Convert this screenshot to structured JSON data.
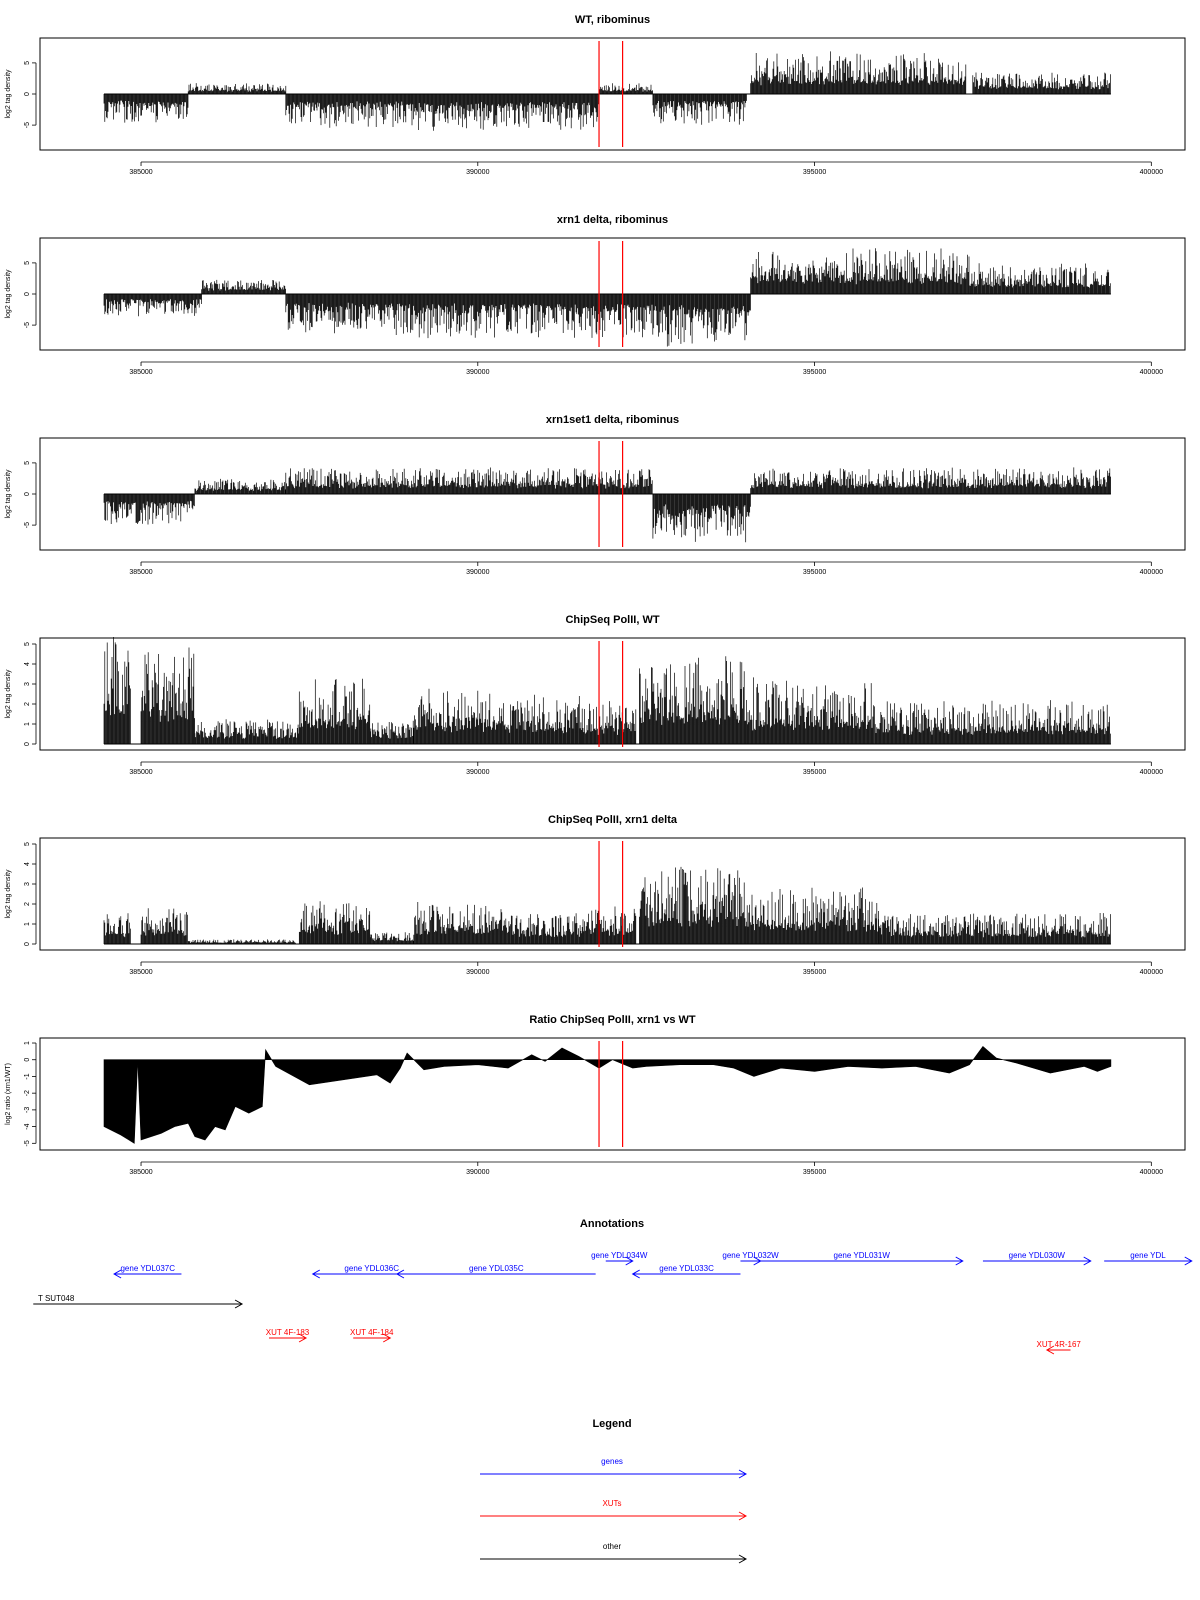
{
  "chart_data": [
    {
      "type": "bar",
      "title": "WT, ribominus",
      "xlabel": "",
      "ylabel": "log2 tag density",
      "xlim": [
        383500,
        400500
      ],
      "ylim": [
        -9,
        9
      ],
      "xticks": [
        385000,
        390000,
        395000,
        400000
      ],
      "xtick_labels": [
        "385000",
        "390000",
        "395000",
        "400000"
      ],
      "yticks": [
        -5,
        0,
        5
      ],
      "ytick_labels": [
        "-5",
        "0",
        "5"
      ],
      "grid": false,
      "reference_lines_x": [
        391800,
        392150
      ],
      "regions": [
        {
          "start": 384450,
          "end": 385700,
          "height": -4.0
        },
        {
          "start": 385700,
          "end": 387150,
          "height": 1.5
        },
        {
          "start": 387150,
          "end": 389000,
          "height": -4.5
        },
        {
          "start": 389000,
          "end": 391800,
          "height": -5.0
        },
        {
          "start": 391800,
          "end": 392600,
          "height": 1.5
        },
        {
          "start": 392600,
          "end": 394000,
          "height": -4.0
        },
        {
          "start": 394050,
          "end": 397250,
          "height": 5.5
        },
        {
          "start": 397350,
          "end": 399400,
          "height": 3.0
        }
      ]
    },
    {
      "type": "bar",
      "title": "xrn1 delta, ribominus",
      "xlabel": "",
      "ylabel": "log2 tag density",
      "xlim": [
        383500,
        400500
      ],
      "ylim": [
        -9,
        9
      ],
      "xticks": [
        385000,
        390000,
        395000,
        400000
      ],
      "xtick_labels": [
        "385000",
        "390000",
        "395000",
        "400000"
      ],
      "yticks": [
        -5,
        0,
        5
      ],
      "ytick_labels": [
        "-5",
        "0",
        "5"
      ],
      "grid": false,
      "reference_lines_x": [
        391800,
        392150
      ],
      "regions": [
        {
          "start": 384450,
          "end": 385900,
          "height": -3.0
        },
        {
          "start": 385900,
          "end": 387150,
          "height": 2.0
        },
        {
          "start": 387150,
          "end": 389000,
          "height": -5.5
        },
        {
          "start": 389000,
          "end": 392600,
          "height": -6.0
        },
        {
          "start": 392600,
          "end": 394050,
          "height": -7.0
        },
        {
          "start": 394050,
          "end": 397300,
          "height": 6.0
        },
        {
          "start": 397300,
          "end": 399400,
          "height": 4.0
        }
      ]
    },
    {
      "type": "bar",
      "title": "xrn1set1 delta, ribominus",
      "xlabel": "",
      "ylabel": "log2 tag density",
      "xlim": [
        383500,
        400500
      ],
      "ylim": [
        -9,
        9
      ],
      "xticks": [
        385000,
        390000,
        395000,
        400000
      ],
      "xtick_labels": [
        "385000",
        "390000",
        "395000",
        "400000"
      ],
      "yticks": [
        -5,
        0,
        5
      ],
      "ytick_labels": [
        "-5",
        "0",
        "5"
      ],
      "grid": false,
      "reference_lines_x": [
        391800,
        392150
      ],
      "regions": [
        {
          "start": 384450,
          "end": 385800,
          "height": -4.0
        },
        {
          "start": 385800,
          "end": 387150,
          "height": 2.0
        },
        {
          "start": 387150,
          "end": 392600,
          "height": 3.5
        },
        {
          "start": 392600,
          "end": 394050,
          "height": -6.5
        },
        {
          "start": 394050,
          "end": 399400,
          "height": 3.5
        }
      ]
    },
    {
      "type": "bar",
      "title": "ChipSeq PolII, WT",
      "xlabel": "",
      "ylabel": "log2 tag density",
      "xlim": [
        383500,
        400500
      ],
      "ylim": [
        -0.3,
        5.3
      ],
      "xticks": [
        385000,
        390000,
        395000,
        400000
      ],
      "xtick_labels": [
        "385000",
        "390000",
        "395000",
        "400000"
      ],
      "yticks": [
        0,
        1,
        2,
        3,
        4,
        5
      ],
      "ytick_labels": [
        "0",
        "1",
        "2",
        "3",
        "4",
        "5"
      ],
      "grid": false,
      "reference_lines_x": [
        391800,
        392150
      ],
      "regions": [
        {
          "start": 384450,
          "end": 384850,
          "height": 4.6
        },
        {
          "start": 385000,
          "end": 385800,
          "height": 4.2
        },
        {
          "start": 385800,
          "end": 387350,
          "height": 1.0
        },
        {
          "start": 387350,
          "end": 388400,
          "height": 2.8
        },
        {
          "start": 388400,
          "end": 389050,
          "height": 1.0
        },
        {
          "start": 389050,
          "end": 390450,
          "height": 2.3
        },
        {
          "start": 390450,
          "end": 391550,
          "height": 2.0
        },
        {
          "start": 391550,
          "end": 392350,
          "height": 1.8
        },
        {
          "start": 392400,
          "end": 394000,
          "height": 3.6
        },
        {
          "start": 394000,
          "end": 395900,
          "height": 2.7
        },
        {
          "start": 395900,
          "end": 399400,
          "height": 1.8
        }
      ]
    },
    {
      "type": "bar",
      "title": "ChipSeq PolII, xrn1 delta",
      "xlabel": "",
      "ylabel": "log2 tag density",
      "xlim": [
        383500,
        400500
      ],
      "ylim": [
        -0.3,
        5.3
      ],
      "xticks": [
        385000,
        390000,
        395000,
        400000
      ],
      "xtick_labels": [
        "385000",
        "390000",
        "395000",
        "400000"
      ],
      "yticks": [
        0,
        1,
        2,
        3,
        4,
        5
      ],
      "ytick_labels": [
        "0",
        "1",
        "2",
        "3",
        "4",
        "5"
      ],
      "grid": false,
      "reference_lines_x": [
        391800,
        392150
      ],
      "regions": [
        {
          "start": 384450,
          "end": 384850,
          "height": 1.3
        },
        {
          "start": 385000,
          "end": 385700,
          "height": 1.5
        },
        {
          "start": 385700,
          "end": 387300,
          "height": 0.2
        },
        {
          "start": 387350,
          "end": 388400,
          "height": 1.8
        },
        {
          "start": 388400,
          "end": 389050,
          "height": 0.5
        },
        {
          "start": 389050,
          "end": 390450,
          "height": 1.8
        },
        {
          "start": 390450,
          "end": 391550,
          "height": 1.3
        },
        {
          "start": 391550,
          "end": 392350,
          "height": 1.6
        },
        {
          "start": 392400,
          "end": 394000,
          "height": 3.3
        },
        {
          "start": 394000,
          "end": 395950,
          "height": 2.4
        },
        {
          "start": 395950,
          "end": 399400,
          "height": 1.3
        }
      ]
    },
    {
      "type": "area",
      "title": "Ratio ChipSeq PolII, xrn1 vs WT",
      "xlabel": "",
      "ylabel": "log2 ratio (xrn1/WT)",
      "xlim": [
        383500,
        400500
      ],
      "ylim": [
        -5.4,
        1.3
      ],
      "xticks": [
        385000,
        390000,
        395000,
        400000
      ],
      "xtick_labels": [
        "385000",
        "390000",
        "395000",
        "400000"
      ],
      "yticks": [
        -5,
        -4,
        -3,
        -2,
        -1,
        0,
        1
      ],
      "ytick_labels": [
        "-5",
        "-4",
        "-3",
        "-2",
        "-1",
        "0",
        "1"
      ],
      "grid": false,
      "reference_lines_x": [
        391800,
        392150
      ],
      "x": [
        384450,
        384700,
        384900,
        384950,
        385000,
        385300,
        385500,
        385700,
        385800,
        385950,
        386100,
        386250,
        386400,
        386600,
        386800,
        386850,
        387000,
        387500,
        388000,
        388500,
        388700,
        388850,
        388950,
        389200,
        389500,
        390000,
        390450,
        390800,
        391000,
        391250,
        391500,
        391800,
        392000,
        392300,
        392500,
        393000,
        393500,
        393800,
        394100,
        394500,
        395000,
        395500,
        396000,
        396500,
        397000,
        397300,
        397500,
        397700,
        398000,
        398500,
        399000,
        399200,
        399400
      ],
      "y": [
        -4.0,
        -4.5,
        -5.0,
        0.0,
        -4.8,
        -4.4,
        -4.0,
        -3.8,
        -4.6,
        -4.8,
        -4.0,
        -4.2,
        -2.8,
        -3.2,
        -2.8,
        0.6,
        -0.4,
        -1.5,
        -1.2,
        -0.9,
        -1.4,
        -0.5,
        0.4,
        -0.6,
        -0.4,
        -0.3,
        -0.5,
        0.3,
        -0.1,
        0.7,
        0.2,
        -0.5,
        0.0,
        -0.5,
        -0.4,
        -0.3,
        -0.3,
        -0.5,
        -1.0,
        -0.5,
        -0.7,
        -0.4,
        -0.5,
        -0.4,
        -0.8,
        -0.3,
        0.8,
        0.1,
        -0.2,
        -0.8,
        -0.4,
        -0.7,
        -0.4
      ]
    }
  ],
  "annotations": {
    "title": "Annotations",
    "items": [
      {
        "label": "gene YDL037C",
        "start": 385600,
        "end": 384600,
        "row": 1,
        "color": "#0000ff"
      },
      {
        "label": "gene YDL036C",
        "start": 389300,
        "end": 387550,
        "row": 1,
        "color": "#0000ff"
      },
      {
        "label": "gene YDL035C",
        "start": 391750,
        "end": 388800,
        "row": 1,
        "color": "#0000ff"
      },
      {
        "label": "gene YDL034W",
        "start": 391900,
        "end": 392300,
        "row": 0,
        "color": "#0000ff"
      },
      {
        "label": "gene YDL033C",
        "start": 393900,
        "end": 392300,
        "row": 1,
        "color": "#0000ff"
      },
      {
        "label": "gene YDL032W",
        "start": 393900,
        "end": 394200,
        "row": 0,
        "color": "#0000ff"
      },
      {
        "label": "gene YDL031W",
        "start": 394200,
        "end": 397200,
        "row": 0,
        "color": "#0000ff"
      },
      {
        "label": "gene YDL030W",
        "start": 397500,
        "end": 399100,
        "row": 0,
        "color": "#0000ff"
      },
      {
        "label": "gene YDL",
        "start": 399300,
        "end": 400600,
        "row": 0,
        "color": "#0000ff"
      },
      {
        "label": "T SUT048",
        "start": 383400,
        "end": 386500,
        "row": 2,
        "color": "#000000"
      },
      {
        "label": "XUT 4F-183",
        "start": 386900,
        "end": 387450,
        "row": 3,
        "color": "#ff0000"
      },
      {
        "label": "XUT 4F-184",
        "start": 388150,
        "end": 388700,
        "row": 3,
        "color": "#ff0000"
      },
      {
        "label": "XUT 4R-167",
        "start": 398800,
        "end": 398450,
        "row": 4,
        "color": "#ff0000"
      }
    ]
  },
  "legend": {
    "title": "Legend",
    "items": [
      {
        "label": "genes",
        "color": "#0000ff"
      },
      {
        "label": "XUTs",
        "color": "#ff0000"
      },
      {
        "label": "other",
        "color": "#000000"
      }
    ]
  }
}
